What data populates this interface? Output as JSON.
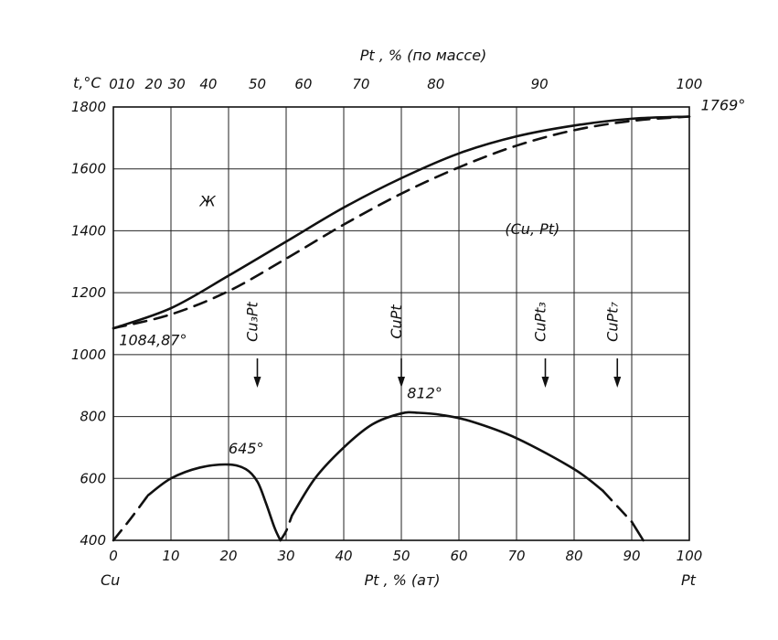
{
  "chart_data": {
    "type": "line",
    "title": "",
    "top_axis_title": "Pt , % (по массе)",
    "bottom_axis_title": "Pt , % (ат)",
    "ylabel": "t,°C",
    "xlim": [
      0,
      100
    ],
    "ylim": [
      400,
      1800
    ],
    "grid": true,
    "bottom_ticks": [
      "0",
      "10",
      "20",
      "30",
      "40",
      "50",
      "60",
      "70",
      "80",
      "90",
      "100"
    ],
    "bottom_tick_values": [
      0,
      10,
      20,
      30,
      40,
      50,
      60,
      70,
      80,
      90,
      100
    ],
    "top_ticks": [
      "0",
      "10",
      "20",
      "30",
      "40",
      "50",
      "60",
      "70",
      "80",
      "90",
      "100"
    ],
    "top_tick_positions_at_pct": [
      0,
      2.2,
      7,
      11,
      16.5,
      25,
      33,
      43,
      56,
      74,
      100
    ],
    "y_ticks": [
      "400",
      "600",
      "800",
      "1000",
      "1200",
      "1400",
      "1600",
      "1800"
    ],
    "y_tick_values": [
      400,
      600,
      800,
      1000,
      1200,
      1400,
      1600,
      1800
    ],
    "end_labels": {
      "left": "Cu",
      "right": "Pt"
    },
    "series": [
      {
        "style": "solid",
        "points": [
          [
            0,
            1085
          ],
          [
            10,
            1150
          ],
          [
            20,
            1255
          ],
          [
            30,
            1365
          ],
          [
            40,
            1475
          ],
          [
            50,
            1570
          ],
          [
            60,
            1650
          ],
          [
            70,
            1705
          ],
          [
            80,
            1740
          ],
          [
            90,
            1762
          ],
          [
            100,
            1769
          ]
        ]
      },
      {
        "style": "dashed",
        "points": [
          [
            0,
            1085
          ],
          [
            10,
            1130
          ],
          [
            20,
            1205
          ],
          [
            30,
            1310
          ],
          [
            40,
            1420
          ],
          [
            50,
            1520
          ],
          [
            60,
            1605
          ],
          [
            70,
            1675
          ],
          [
            80,
            1725
          ],
          [
            90,
            1755
          ],
          [
            100,
            1769
          ]
        ]
      },
      {
        "style": "dashed",
        "points": [
          [
            0,
            400
          ],
          [
            3,
            470
          ],
          [
            6,
            545
          ]
        ]
      },
      {
        "style": "solid",
        "points": [
          [
            6,
            545
          ],
          [
            10,
            600
          ],
          [
            15,
            635
          ],
          [
            20,
            645
          ],
          [
            23,
            630
          ],
          [
            25,
            590
          ],
          [
            26.5,
            520
          ],
          [
            28,
            440
          ],
          [
            29,
            400
          ]
        ]
      },
      {
        "style": "dashed",
        "points": [
          [
            29,
            400
          ],
          [
            30,
            430
          ],
          [
            31,
            480
          ]
        ]
      },
      {
        "style": "solid",
        "points": [
          [
            31,
            480
          ],
          [
            35,
            600
          ],
          [
            40,
            700
          ],
          [
            45,
            775
          ],
          [
            50,
            810
          ],
          [
            53,
            812
          ],
          [
            57,
            805
          ],
          [
            62,
            785
          ],
          [
            70,
            730
          ],
          [
            80,
            630
          ],
          [
            85,
            560
          ]
        ]
      },
      {
        "style": "dashed",
        "points": [
          [
            85,
            560
          ],
          [
            88,
            500
          ],
          [
            90,
            460
          ]
        ]
      },
      {
        "style": "solid",
        "points": [
          [
            90,
            460
          ],
          [
            92,
            400
          ]
        ]
      }
    ],
    "annotations": [
      {
        "text": "1084,87°",
        "x": 1,
        "y": 1030
      },
      {
        "text": "1769°",
        "x": 102,
        "y": 1790
      },
      {
        "text": "Ж",
        "x": 15,
        "y": 1480
      },
      {
        "text": "(Cu, Pt)",
        "x": 68,
        "y": 1390
      },
      {
        "text": "645°",
        "x": 20,
        "y": 680
      },
      {
        "text": "812°",
        "x": 51,
        "y": 860
      }
    ],
    "phase_markers": [
      {
        "text": "Cu₃Pt",
        "x": 25
      },
      {
        "text": "CuPt",
        "x": 50
      },
      {
        "text": "CuPt₃",
        "x": 75
      },
      {
        "text": "CuPt₇",
        "x": 87.5
      }
    ]
  }
}
